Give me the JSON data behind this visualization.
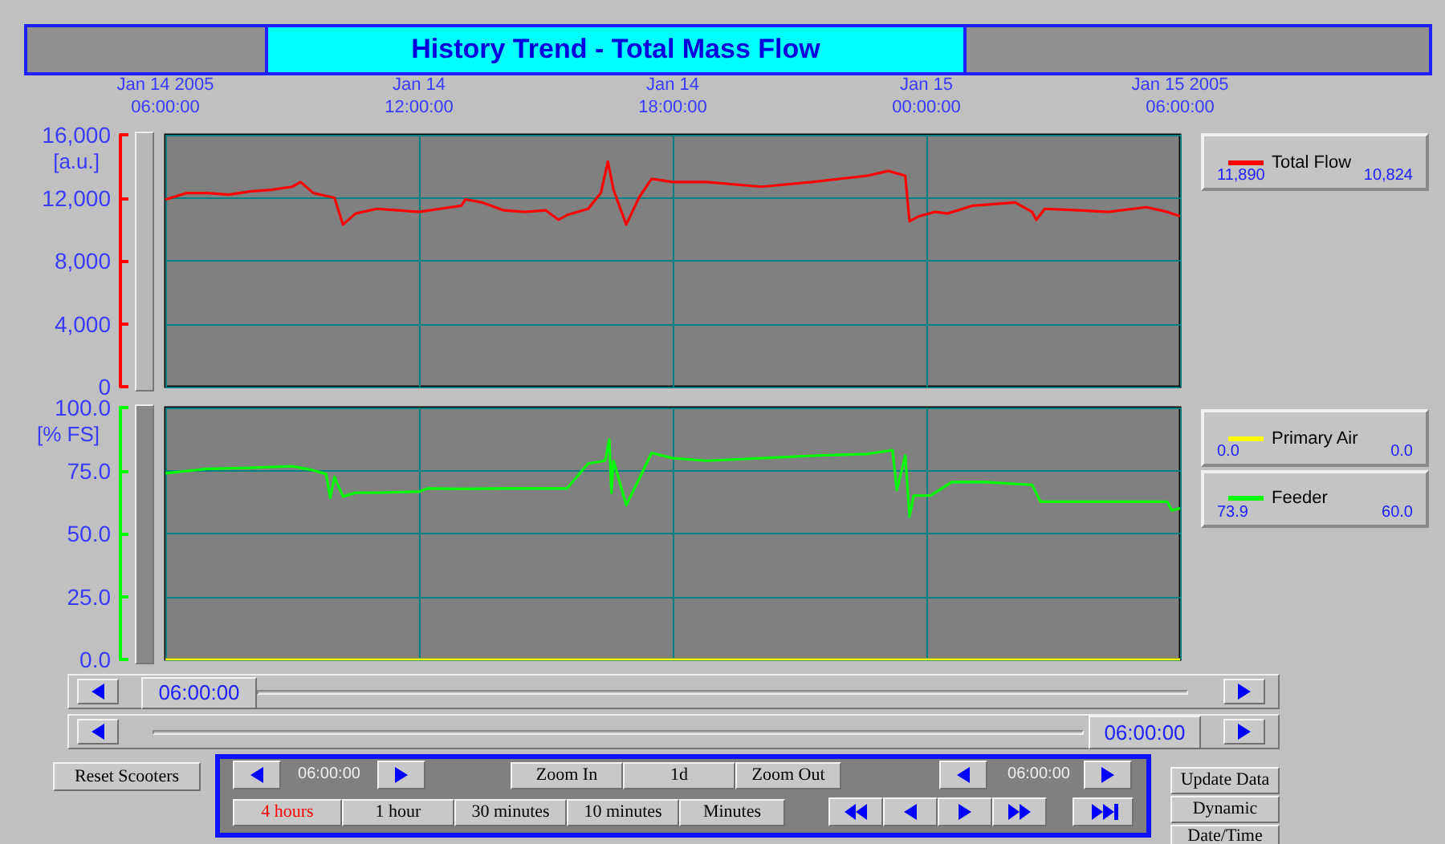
{
  "chart_data": [
    {
      "type": "line",
      "title": "History Trend  -  Total Mass Flow",
      "ylabel": "[a.u.]",
      "legend": "right",
      "grid": true,
      "xlim": [
        "2005-01-14T06:00",
        "2005-01-15T06:00"
      ],
      "xticks": [
        {
          "value": "2005-01-14T06:00",
          "label": "Jan 14 2005\n06:00:00"
        },
        {
          "value": "2005-01-14T12:00",
          "label": "Jan 14\n12:00:00"
        },
        {
          "value": "2005-01-14T18:00",
          "label": "Jan 14\n18:00:00"
        },
        {
          "value": "2005-01-15T00:00",
          "label": "Jan 15\n00:00:00"
        },
        {
          "value": "2005-01-15T06:00",
          "label": "Jan 15 2005\n06:00:00"
        }
      ],
      "ylim": [
        0,
        16000
      ],
      "yticks": [
        0,
        {
          "value": 4000,
          "label": "4,000"
        },
        {
          "value": 8000,
          "label": "8,000"
        },
        {
          "value": 12000,
          "label": "12,000"
        },
        {
          "value": 16000,
          "label": "16,000"
        }
      ],
      "annotations": [
        "11,890",
        "10,824"
      ],
      "series": [
        {
          "name": "Total Flow",
          "color": "#ff0000",
          "x": [
            "2005-01-14T06:00",
            "2005-01-14T06:30",
            "2005-01-14T07:00",
            "2005-01-14T07:30",
            "2005-01-14T08:00",
            "2005-01-14T08:30",
            "2005-01-14T09:00",
            "2005-01-14T09:12",
            "2005-01-14T09:30",
            "2005-01-14T10:00",
            "2005-01-14T10:12",
            "2005-01-14T10:30",
            "2005-01-14T11:00",
            "2005-01-14T11:30",
            "2005-01-14T12:00",
            "2005-01-14T12:30",
            "2005-01-14T13:00",
            "2005-01-14T13:06",
            "2005-01-14T13:30",
            "2005-01-14T14:00",
            "2005-01-14T14:30",
            "2005-01-14T15:00",
            "2005-01-14T15:18",
            "2005-01-14T15:30",
            "2005-01-14T16:00",
            "2005-01-14T16:18",
            "2005-01-14T16:28",
            "2005-01-14T16:36",
            "2005-01-14T16:54",
            "2005-01-14T17:12",
            "2005-01-14T17:30",
            "2005-01-14T18:00",
            "2005-01-14T18:48",
            "2005-01-14T20:06",
            "2005-01-14T21:18",
            "2005-01-14T22:36",
            "2005-01-14T23:06",
            "2005-01-14T23:30",
            "2005-01-14T23:36",
            "2005-01-14T23:48",
            "2005-01-15T00:12",
            "2005-01-15T00:30",
            "2005-01-15T01:06",
            "2005-01-15T02:06",
            "2005-01-15T02:30",
            "2005-01-15T02:36",
            "2005-01-15T02:48",
            "2005-01-15T03:36",
            "2005-01-15T04:18",
            "2005-01-15T05:12",
            "2005-01-15T05:42",
            "2005-01-15T06:00"
          ],
          "values": [
            11890,
            12300,
            12300,
            12200,
            12400,
            12500,
            12700,
            13000,
            12300,
            12000,
            10300,
            11000,
            11300,
            11200,
            11100,
            11300,
            11500,
            11900,
            11700,
            11200,
            11100,
            11200,
            10600,
            10900,
            11300,
            12300,
            14300,
            12500,
            10300,
            12000,
            13200,
            13000,
            13000,
            12700,
            13000,
            13400,
            13700,
            13400,
            10500,
            10800,
            11100,
            11000,
            11500,
            11700,
            11100,
            10600,
            11300,
            11200,
            11100,
            11400,
            11100,
            10824
          ]
        }
      ]
    },
    {
      "type": "line",
      "ylabel": "[% FS]",
      "legend": "right",
      "grid": true,
      "tick_labels": "y",
      "xlim": [
        "2005-01-14T06:00",
        "2005-01-15T06:00"
      ],
      "xticks": [
        {
          "value": "2005-01-14T06:00",
          "label": null
        },
        {
          "value": "2005-01-14T12:00",
          "label": null
        },
        {
          "value": "2005-01-14T18:00",
          "label": null
        },
        {
          "value": "2005-01-15T00:00",
          "label": null
        },
        {
          "value": "2005-01-15T06:00",
          "label": null
        }
      ],
      "ylim": [
        0,
        100
      ],
      "yticks": [
        {
          "value": 0,
          "label": "0.0"
        },
        {
          "value": 25,
          "label": "25.0"
        },
        {
          "value": 50,
          "label": "50.0"
        },
        {
          "value": 75,
          "label": "75.0"
        },
        {
          "value": 100,
          "label": "100.0"
        }
      ],
      "annotations": [
        "0.0",
        "0.0",
        "73.9",
        "60.0"
      ],
      "series": [
        {
          "name": "Primary Air",
          "color": "#ffff00",
          "x": [
            "2005-01-14T06:00",
            "2005-01-15T06:00"
          ],
          "values": [
            0,
            0
          ]
        },
        {
          "name": "Feeder",
          "color": "#00ff00",
          "x": [
            "2005-01-14T06:00",
            "2005-01-14T07:00",
            "2005-01-14T08:00",
            "2005-01-14T09:00",
            "2005-01-14T09:30",
            "2005-01-14T09:48",
            "2005-01-14T09:54",
            "2005-01-14T10:00",
            "2005-01-14T10:12",
            "2005-01-14T10:30",
            "2005-01-14T11:00",
            "2005-01-14T12:00",
            "2005-01-14T12:12",
            "2005-01-14T13:00",
            "2005-01-14T14:00",
            "2005-01-14T15:00",
            "2005-01-14T15:30",
            "2005-01-14T16:00",
            "2005-01-14T16:24",
            "2005-01-14T16:30",
            "2005-01-14T16:33",
            "2005-01-14T16:36",
            "2005-01-14T16:54",
            "2005-01-14T17:12",
            "2005-01-14T17:30",
            "2005-01-14T18:00",
            "2005-01-14T18:48",
            "2005-01-14T20:06",
            "2005-01-14T21:18",
            "2005-01-14T22:36",
            "2005-01-14T23:12",
            "2005-01-14T23:18",
            "2005-01-14T23:30",
            "2005-01-14T23:36",
            "2005-01-14T23:42",
            "2005-01-15T00:06",
            "2005-01-15T00:36",
            "2005-01-15T01:24",
            "2005-01-15T02:30",
            "2005-01-15T02:42",
            "2005-01-15T03:42",
            "2005-01-15T05:42",
            "2005-01-15T05:48",
            "2005-01-15T06:00"
          ],
          "values": [
            73.9,
            75.7,
            76.1,
            76.7,
            75.1,
            73.6,
            64.1,
            72.5,
            64.7,
            66.2,
            66.2,
            66.6,
            67.9,
            67.7,
            67.9,
            67.9,
            67.9,
            77.8,
            78.9,
            87.3,
            66.2,
            78.9,
            61.3,
            71.5,
            82.0,
            79.9,
            78.9,
            79.9,
            80.9,
            81.6,
            83.1,
            67.2,
            80.9,
            56.7,
            65.1,
            65.1,
            70.4,
            70.4,
            69.3,
            62.6,
            62.6,
            62.6,
            59.2,
            60.0
          ]
        }
      ]
    },
    {
      "type": "other",
      "annotations": [
        "06:00:00",
        "06:00:00",
        "Reset Scooters",
        "06:00:00",
        "Zoom In",
        "1d",
        "Zoom Out",
        "06:00:00",
        "4 hours",
        "1 hour",
        "30 minutes",
        "10 minutes",
        "Minutes",
        "Update Data",
        "Dynamic",
        "Date/Time"
      ]
    }
  ]
}
